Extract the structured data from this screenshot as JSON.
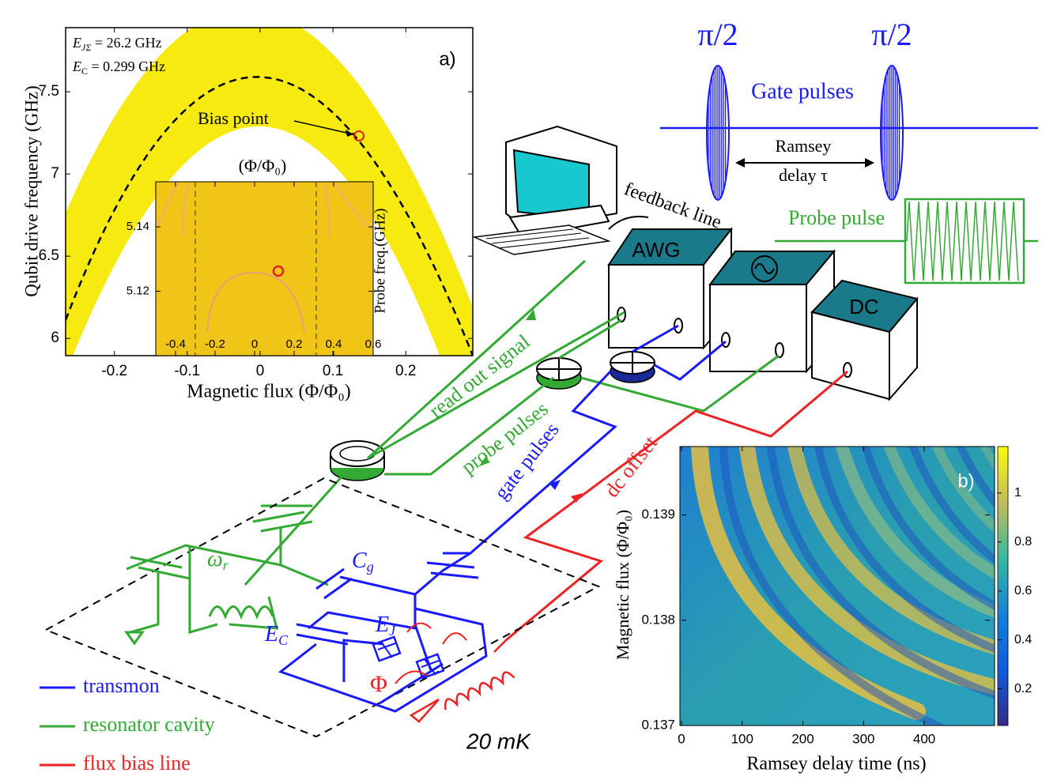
{
  "panel_a": {
    "label": "a)",
    "annotations": [
      {
        "base": "E",
        "sub": "JΣ",
        "rest": " = 26.2 GHz"
      },
      {
        "base": "E",
        "sub": "C",
        "rest": " = 0.299 GHz"
      }
    ],
    "marker_label": "Bias point",
    "xlabel": "Magnetic flux (Φ/Φ₀)",
    "ylabel": "Qubit drive frequency (GHz)",
    "xlim": [
      -0.267,
      0.292
    ],
    "ylim": [
      5.895,
      7.89
    ],
    "xticks": [
      -0.2,
      -0.1,
      0,
      0.1,
      0.2
    ],
    "yticks": [
      6,
      6.5,
      7,
      7.5
    ],
    "inset": {
      "title": "(Φ/Φ₀)",
      "ylabel": "Probe freq.(GHz)",
      "xlim": [
        -0.5,
        0.6
      ],
      "ylim": [
        5.1,
        5.154
      ],
      "xticks": [
        -0.4,
        -0.2,
        0,
        0.2,
        0.4,
        0.6
      ],
      "yticks": [
        5.12,
        5.14
      ]
    }
  },
  "pulses": {
    "gate_pi_1": "π/2",
    "gate_pi_2": "π/2",
    "gate_label": "Gate pulses",
    "delay_label": [
      "Ramsey",
      "delay τ"
    ],
    "probe_label": "Probe pulse"
  },
  "setup": {
    "instruments": [
      "AWG",
      "DC"
    ],
    "feedback": "feedback line",
    "read_out": "read out signal",
    "probe_pulses": "probe pulses",
    "gate_pulses": "gate pulses",
    "dc_offset": "dc offset",
    "temperature": "20 mK"
  },
  "circuit": {
    "omega": {
      "base": "ω",
      "sub": "r"
    },
    "cg": {
      "base": "C",
      "sub": "g"
    },
    "ej": {
      "base": "E",
      "sub": "J"
    },
    "ec": {
      "base": "E",
      "sub": "C"
    },
    "flux": "Φ"
  },
  "legend": [
    {
      "name": "transmon",
      "color": "#1a1aff"
    },
    {
      "name": "resonator cavity",
      "color": "#33aa33"
    },
    {
      "name": "flux bias line",
      "color": "#ee2222"
    }
  ],
  "panel_b": {
    "label": "b)",
    "xlabel": "Ramsey delay time (ns)",
    "ylabel": "Magnetic flux (Φ/Φ₀)",
    "xlim": [
      0,
      508
    ],
    "ylim": [
      0.137,
      0.13965
    ],
    "xticks": [
      0,
      100,
      200,
      300,
      400
    ],
    "yticks": [
      0.137,
      0.138,
      0.139
    ],
    "colorbar": {
      "lim": [
        0.05,
        1.19
      ],
      "ticks": [
        0.2,
        0.4,
        0.6,
        0.8,
        1
      ]
    }
  }
}
